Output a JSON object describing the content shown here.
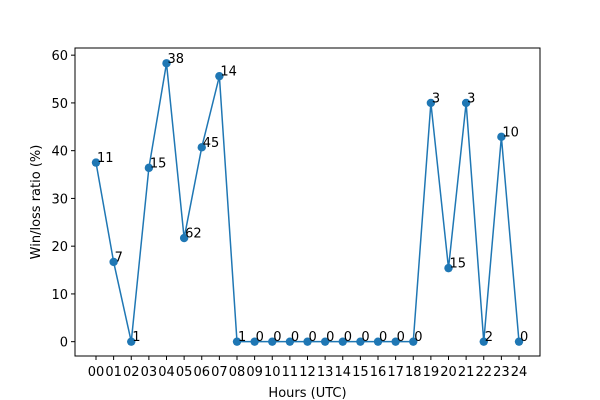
{
  "chart_data": {
    "type": "line",
    "categories": [
      "00",
      "01",
      "02",
      "03",
      "04",
      "05",
      "06",
      "07",
      "08",
      "09",
      "10",
      "11",
      "12",
      "13",
      "14",
      "15",
      "16",
      "17",
      "18",
      "19",
      "20",
      "21",
      "22",
      "23",
      "24"
    ],
    "values": [
      37.5,
      16.7,
      0,
      36.4,
      58.3,
      21.7,
      40.7,
      55.6,
      0,
      0,
      0,
      0,
      0,
      0,
      0,
      0,
      0,
      0,
      0,
      50,
      15.4,
      50,
      0,
      42.9,
      0
    ],
    "point_labels": [
      "11",
      "7",
      "1",
      "15",
      "38",
      "62",
      "45",
      "14",
      "1",
      "0",
      "0",
      "0",
      "0",
      "0",
      "0",
      "0",
      "0",
      "0",
      "0",
      "3",
      "15",
      "3",
      "2",
      "10",
      "0"
    ],
    "xlabel": "Hours (UTC)",
    "ylabel": "Win/loss ratio (%)",
    "ylim": [
      -3,
      61.5
    ],
    "yticks": [
      0,
      10,
      20,
      30,
      40,
      50,
      60
    ],
    "line_color": "#1f77b4",
    "grid": false,
    "legend": false
  }
}
